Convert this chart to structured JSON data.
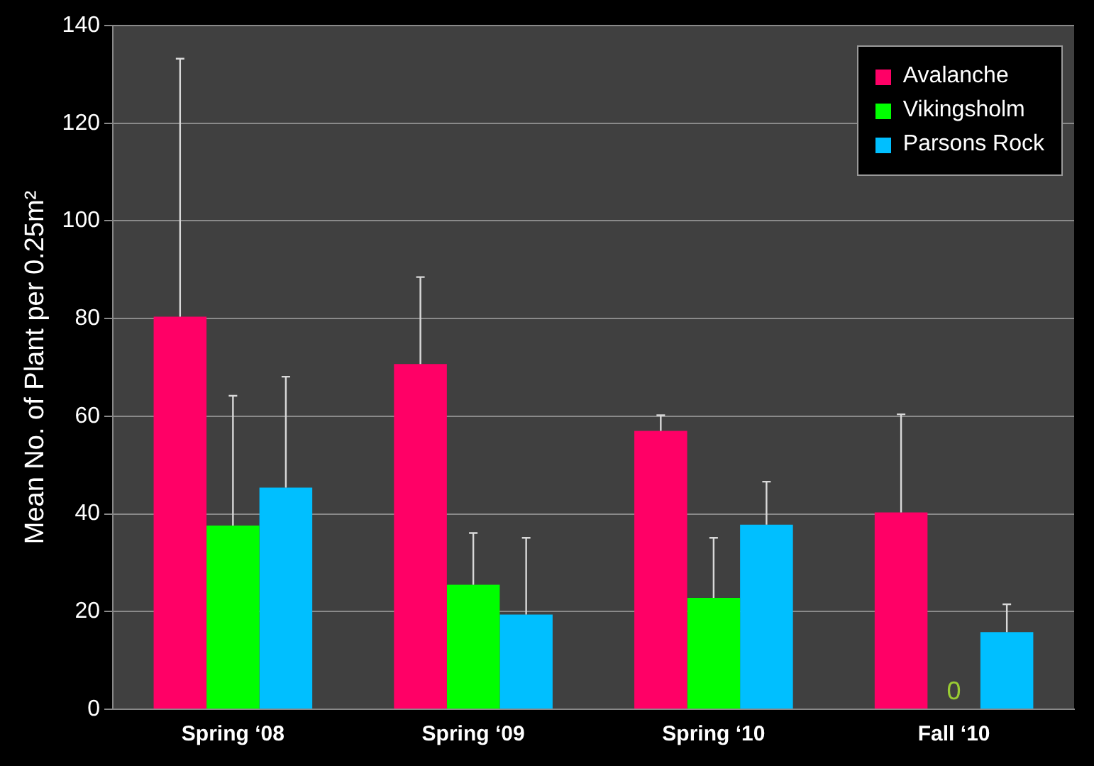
{
  "chart_data": {
    "type": "bar",
    "ylabel": "Mean No. of Plant per 0.25m²",
    "categories": [
      "Spring ‘08",
      "Spring ‘09",
      "Spring ‘10",
      "Fall ‘10"
    ],
    "series": [
      {
        "name": "Avalanche",
        "color": "#ff0066",
        "values": [
          80.4,
          70.7,
          57.0,
          40.3
        ],
        "errors": [
          [
            80.4,
            133.2
          ],
          [
            70.7,
            88.5
          ],
          [
            57.0,
            60.2
          ],
          [
            40.3,
            60.4
          ]
        ]
      },
      {
        "name": "Vikingsholm",
        "color": "#00ff00",
        "values": [
          37.6,
          25.5,
          22.8,
          0
        ],
        "errors": [
          [
            37.6,
            64.2
          ],
          [
            25.5,
            36.1
          ],
          [
            22.8,
            35.1
          ],
          null
        ],
        "value_labels": [
          null,
          null,
          null,
          "0"
        ]
      },
      {
        "name": "Parsons Rock",
        "color": "#00bfff",
        "values": [
          45.4,
          19.4,
          37.8,
          15.8
        ],
        "errors": [
          [
            45.4,
            68.1
          ],
          [
            19.4,
            35.1
          ],
          [
            37.8,
            46.6
          ],
          [
            15.8,
            21.5
          ]
        ]
      }
    ],
    "ylim": [
      0,
      140
    ],
    "yticks": [
      0,
      20,
      40,
      60,
      80,
      100,
      120,
      140
    ],
    "grid": "y",
    "legend": "top right"
  }
}
